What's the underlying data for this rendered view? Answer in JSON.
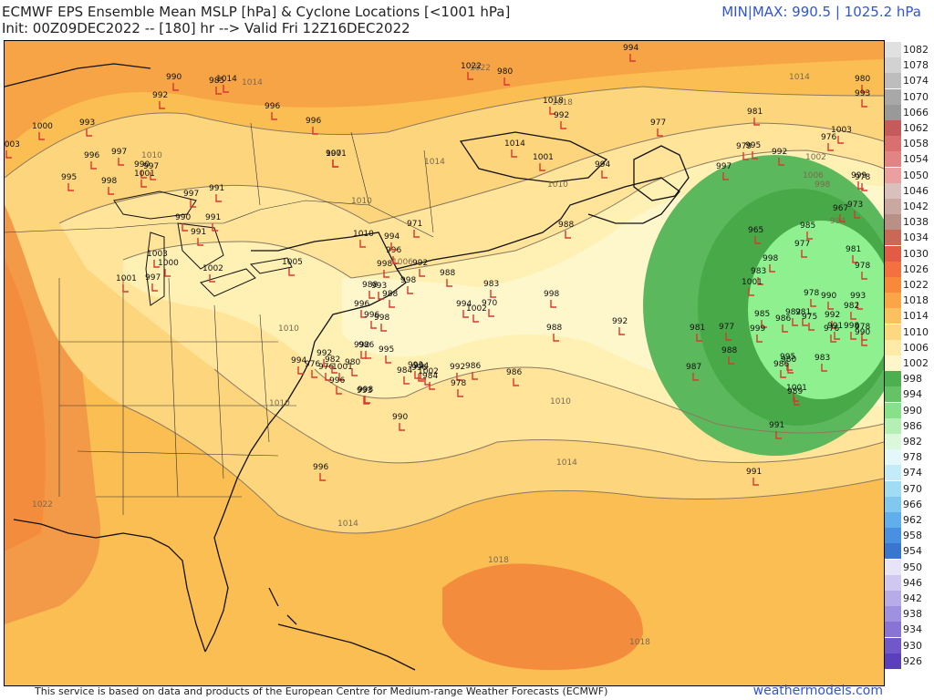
{
  "header": {
    "title_line1": "ECMWF EPS Ensemble Mean MSLP [hPa] & Cyclone Locations [<1001 hPa]",
    "title_line2": "Init: 00Z09DEC2022 -- [180] hr --> Valid Fri 12Z16DEC2022",
    "minmax": "MIN|MAX: 990.5 | 1025.2 hPa"
  },
  "footer": {
    "credit": "This service is based on data and products of the European Centre for Medium-range Weather Forecasts (ECMWF)",
    "brand": "weathermodels.com"
  },
  "colors": {
    "low_outer": "#5cb85c",
    "low_mid": "#48a948",
    "low_core": "#8ef08e",
    "c1002": "#fff7cc",
    "c1006": "#fff0b3",
    "c1010": "#ffe49a",
    "c1014": "#fcd57c",
    "c1018": "#fbbe52",
    "c1022": "#f7a447",
    "c1026": "#f38c3c",
    "marker": "#d9382f"
  },
  "colorbar": [
    {
      "label": "1082",
      "color": "#e0e0e0"
    },
    {
      "label": "1078",
      "color": "#d2d2d2"
    },
    {
      "label": "1074",
      "color": "#bdbdbd"
    },
    {
      "label": "1070",
      "color": "#a8a8a8"
    },
    {
      "label": "1066",
      "color": "#999999"
    },
    {
      "label": "1062",
      "color": "#c55a5a"
    },
    {
      "label": "1058",
      "color": "#d97070"
    },
    {
      "label": "1054",
      "color": "#e38484"
    },
    {
      "label": "1050",
      "color": "#eba0a0"
    },
    {
      "label": "1046",
      "color": "#d8c0bc"
    },
    {
      "label": "1042",
      "color": "#c8a8a0"
    },
    {
      "label": "1038",
      "color": "#b89088"
    },
    {
      "label": "1034",
      "color": "#c86855"
    },
    {
      "label": "1030",
      "color": "#e25c45"
    },
    {
      "label": "1026",
      "color": "#f57040"
    },
    {
      "label": "1022",
      "color": "#f8883c"
    },
    {
      "label": "1018",
      "color": "#f9a548"
    },
    {
      "label": "1014",
      "color": "#fbc060"
    },
    {
      "label": "1010",
      "color": "#fdd880"
    },
    {
      "label": "1006",
      "color": "#ffeaa8"
    },
    {
      "label": "1002",
      "color": "#fff6cc"
    },
    {
      "label": "998",
      "color": "#4caf50"
    },
    {
      "label": "994",
      "color": "#66c266"
    },
    {
      "label": "990",
      "color": "#88e088"
    },
    {
      "label": "986",
      "color": "#b4f0b4"
    },
    {
      "label": "982",
      "color": "#dcf8dc"
    },
    {
      "label": "978",
      "color": "#e4f8fc"
    },
    {
      "label": "974",
      "color": "#c4ecf8"
    },
    {
      "label": "970",
      "color": "#a0dcf4"
    },
    {
      "label": "966",
      "color": "#80c8f0"
    },
    {
      "label": "962",
      "color": "#60aeec"
    },
    {
      "label": "958",
      "color": "#4a90e0"
    },
    {
      "label": "954",
      "color": "#3a76d0"
    },
    {
      "label": "950",
      "color": "#e8e4f8"
    },
    {
      "label": "946",
      "color": "#d0c8f0"
    },
    {
      "label": "942",
      "color": "#b8ace8"
    },
    {
      "label": "938",
      "color": "#a090e0"
    },
    {
      "label": "934",
      "color": "#8874d4"
    },
    {
      "label": "930",
      "color": "#7058c8"
    },
    {
      "label": "926",
      "color": "#5a40bc"
    }
  ],
  "isobar_labels": [
    "1022",
    "1014",
    "1018",
    "1014",
    "1010",
    "1006",
    "1002",
    "998",
    "994",
    "1014",
    "1010",
    "1006",
    "1010",
    "1014",
    "1014",
    "1010",
    "1010",
    "1010",
    "1018",
    "1018",
    "1022"
  ],
  "cyclones": [
    "994",
    "980",
    "1022",
    "980",
    "1014",
    "990",
    "992",
    "985",
    "996",
    "996",
    "1018",
    "993",
    "1000",
    "996",
    "997",
    "997",
    "990",
    "1001",
    "997",
    "1003",
    "995",
    "998",
    "991",
    "997",
    "1001",
    "990",
    "991",
    "992",
    "977",
    "981",
    "976",
    "1003",
    "993",
    "988",
    "994",
    "1001",
    "1014",
    "997",
    "979",
    "995",
    "992",
    "999",
    "978",
    "967",
    "973",
    "965",
    "985",
    "977",
    "981",
    "998",
    "983",
    "978",
    "1001",
    "997",
    "991",
    "1002",
    "1000",
    "1003",
    "1005",
    "1001",
    "1010",
    "998",
    "992",
    "988",
    "993",
    "971",
    "996",
    "994",
    "998",
    "983",
    "988",
    "998",
    "992",
    "988",
    "981",
    "970",
    "994",
    "1002",
    "985",
    "986",
    "982",
    "981",
    "975",
    "978",
    "987",
    "988",
    "977",
    "999",
    "990",
    "993",
    "982",
    "992",
    "991",
    "978",
    "990",
    "976",
    "998",
    "995",
    "980",
    "986",
    "983",
    "1001",
    "989",
    "991",
    "988",
    "996",
    "996",
    "998",
    "994",
    "996",
    "1002",
    "993",
    "992",
    "986",
    "978",
    "984",
    "984",
    "993",
    "992",
    "976",
    "982",
    "1001",
    "980",
    "986",
    "995",
    "996",
    "976",
    "994",
    "991",
    "996",
    "998",
    "990",
    "986",
    "992"
  ]
}
